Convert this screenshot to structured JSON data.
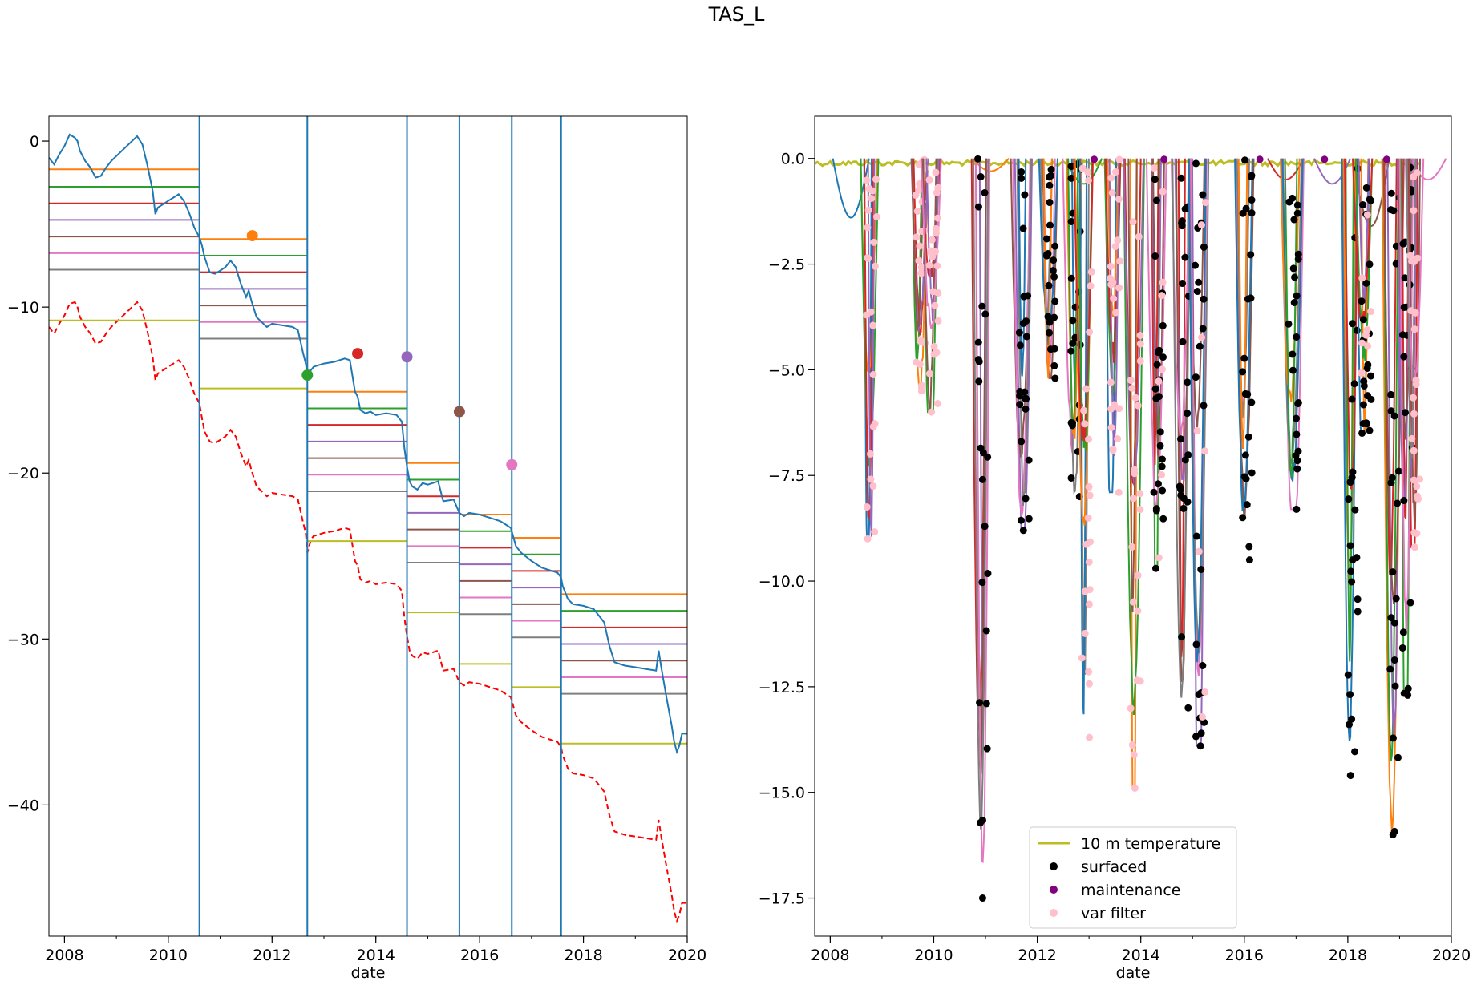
{
  "figure": {
    "suptitle": "TAS_L"
  },
  "chart_data": [
    {
      "type": "line",
      "panel": "left",
      "xlabel": "date",
      "ylabel": "",
      "xlim": [
        2007.7,
        2020.0
      ],
      "ylim": [
        -47.9,
        1.5
      ],
      "x_ticks": [
        2008,
        2010,
        2012,
        2014,
        2016,
        2018,
        2020
      ],
      "x_tick_labels": [
        "2008",
        "2010",
        "2012",
        "2014",
        "2016",
        "2018",
        "2020"
      ],
      "y_ticks": [
        0,
        -10,
        -20,
        -30,
        -40
      ],
      "y_tick_labels": [
        "0",
        "−10",
        "−20",
        "−30",
        "−40"
      ],
      "grid": false,
      "colors": {
        "series": "#1f77b4",
        "dashed": "#ff0000",
        "levels": [
          "#ff7f0e",
          "#2ca02c",
          "#d62728",
          "#9467bd",
          "#8c564b",
          "#e377c2",
          "#7f7f7f",
          "#bcbd22"
        ]
      },
      "vertical_lines": [
        2010.6,
        2012.68,
        2014.6,
        2015.61,
        2016.62,
        2017.57
      ],
      "segments": [
        {
          "x0": 2007.7,
          "x1": 2010.6,
          "levels": [
            -1.7,
            -2.75,
            -3.75,
            -4.75,
            -5.75,
            -6.75,
            -7.75
          ],
          "yellow": -10.8
        },
        {
          "x0": 2010.6,
          "x1": 2012.68,
          "levels": [
            -5.9,
            -6.9,
            -7.9,
            -8.9,
            -9.9,
            -10.9,
            -11.9
          ],
          "yellow": -14.9
        },
        {
          "x0": 2012.68,
          "x1": 2014.6,
          "levels": [
            -15.1,
            -16.1,
            -17.1,
            -18.1,
            -19.1,
            -20.1,
            -21.1
          ],
          "yellow": -24.1
        },
        {
          "x0": 2014.6,
          "x1": 2015.61,
          "levels": [
            -19.4,
            -20.4,
            -21.4,
            -22.4,
            -23.4,
            -24.4,
            -25.4
          ],
          "yellow": -28.4
        },
        {
          "x0": 2015.61,
          "x1": 2016.62,
          "levels": [
            -22.5,
            -23.5,
            -24.5,
            -25.5,
            -26.5,
            -27.5,
            -28.5
          ],
          "yellow": -31.5
        },
        {
          "x0": 2016.62,
          "x1": 2017.57,
          "levels": [
            -23.9,
            -24.9,
            -25.9,
            -26.9,
            -27.9,
            -28.9,
            -29.9
          ],
          "yellow": -32.9
        },
        {
          "x0": 2017.57,
          "x1": 2020.0,
          "levels": [
            -27.3,
            -28.3,
            -29.3,
            -30.3,
            -31.3,
            -32.3,
            -33.3
          ],
          "yellow": -36.3
        }
      ],
      "markers": [
        {
          "x": 2011.62,
          "y": -5.7,
          "color": "#ff7f0e"
        },
        {
          "x": 2012.68,
          "y": -14.1,
          "color": "#2ca02c"
        },
        {
          "x": 2013.65,
          "y": -12.8,
          "color": "#d62728"
        },
        {
          "x": 2014.6,
          "y": -13.0,
          "color": "#9467bd"
        },
        {
          "x": 2015.61,
          "y": -16.3,
          "color": "#8c564b"
        },
        {
          "x": 2016.62,
          "y": -19.5,
          "color": "#e377c2"
        }
      ],
      "series_solid": {
        "x": [
          2007.7,
          2007.8,
          2007.9,
          2008.0,
          2008.1,
          2008.2,
          2008.25,
          2008.3,
          2008.4,
          2008.5,
          2008.6,
          2008.7,
          2008.8,
          2008.9,
          2009.0,
          2009.2,
          2009.4,
          2009.5,
          2009.6,
          2009.7,
          2009.75,
          2009.8,
          2009.9,
          2010.0,
          2010.1,
          2010.2,
          2010.3,
          2010.4,
          2010.5,
          2010.6,
          2010.65,
          2010.7,
          2010.8,
          2010.9,
          2011.0,
          2011.1,
          2011.2,
          2011.3,
          2011.4,
          2011.5,
          2011.55,
          2011.6,
          2011.7,
          2011.8,
          2011.9,
          2012.0,
          2012.2,
          2012.4,
          2012.5,
          2012.6,
          2012.65,
          2012.68,
          2012.75,
          2012.8,
          2012.9,
          2013.0,
          2013.2,
          2013.4,
          2013.5,
          2013.6,
          2013.65,
          2013.7,
          2013.8,
          2013.9,
          2014.0,
          2014.2,
          2014.4,
          2014.5,
          2014.55,
          2014.6,
          2014.65,
          2014.7,
          2014.8,
          2014.9,
          2015.0,
          2015.2,
          2015.3,
          2015.5,
          2015.61,
          2015.7,
          2015.8,
          2016.0,
          2016.2,
          2016.4,
          2016.5,
          2016.6,
          2016.7,
          2016.8,
          2017.0,
          2017.2,
          2017.4,
          2017.5,
          2017.57,
          2017.6,
          2017.7,
          2017.8,
          2018.0,
          2018.2,
          2018.4,
          2018.5,
          2018.6,
          2018.8,
          2019.0,
          2019.2,
          2019.4,
          2019.45,
          2019.5,
          2019.6,
          2019.7,
          2019.75,
          2019.8,
          2019.85,
          2019.9,
          2020.0
        ],
        "y": [
          -1.0,
          -1.4,
          -0.8,
          -0.3,
          0.4,
          0.2,
          0.0,
          -0.6,
          -1.2,
          -1.6,
          -2.2,
          -2.1,
          -1.6,
          -1.2,
          -0.9,
          -0.3,
          0.3,
          -0.2,
          -1.5,
          -3.0,
          -4.4,
          -4.0,
          -3.8,
          -3.6,
          -3.4,
          -3.2,
          -3.6,
          -4.3,
          -5.2,
          -5.8,
          -6.3,
          -7.0,
          -7.9,
          -8.0,
          -7.8,
          -7.6,
          -7.2,
          -7.6,
          -8.6,
          -9.4,
          -9.0,
          -9.6,
          -10.6,
          -10.9,
          -11.2,
          -11.0,
          -11.1,
          -11.2,
          -11.4,
          -12.8,
          -13.4,
          -14.1,
          -13.8,
          -13.6,
          -13.5,
          -13.4,
          -13.3,
          -13.1,
          -13.2,
          -15.1,
          -15.4,
          -16.2,
          -16.4,
          -16.3,
          -16.5,
          -16.4,
          -16.5,
          -16.9,
          -18.5,
          -19.6,
          -20.5,
          -20.8,
          -21.0,
          -20.6,
          -20.7,
          -20.5,
          -21.7,
          -21.6,
          -22.4,
          -22.6,
          -22.4,
          -22.5,
          -22.7,
          -22.9,
          -23.1,
          -23.3,
          -24.4,
          -24.8,
          -25.3,
          -25.7,
          -25.9,
          -26.0,
          -26.3,
          -26.8,
          -27.6,
          -27.9,
          -28.0,
          -28.2,
          -29.0,
          -30.4,
          -31.4,
          -31.6,
          -31.7,
          -31.8,
          -31.9,
          -30.7,
          -31.7,
          -33.5,
          -35.2,
          -36.2,
          -36.8,
          -36.4,
          -35.7,
          -35.7
        ]
      },
      "series_dashed": {
        "x": [
          2007.7,
          2007.8,
          2007.9,
          2008.0,
          2008.1,
          2008.2,
          2008.25,
          2008.3,
          2008.4,
          2008.5,
          2008.6,
          2008.7,
          2008.8,
          2008.9,
          2009.0,
          2009.2,
          2009.4,
          2009.5,
          2009.6,
          2009.7,
          2009.75,
          2009.8,
          2009.9,
          2010.0,
          2010.1,
          2010.2,
          2010.3,
          2010.4,
          2010.5,
          2010.6,
          2010.65,
          2010.7,
          2010.8,
          2010.9,
          2011.0,
          2011.1,
          2011.2,
          2011.3,
          2011.4,
          2011.5,
          2011.55,
          2011.6,
          2011.7,
          2011.8,
          2011.9,
          2012.0,
          2012.2,
          2012.4,
          2012.5,
          2012.6,
          2012.65,
          2012.68,
          2012.75,
          2012.8,
          2012.9,
          2013.0,
          2013.2,
          2013.4,
          2013.5,
          2013.6,
          2013.65,
          2013.7,
          2013.8,
          2013.9,
          2014.0,
          2014.2,
          2014.4,
          2014.5,
          2014.55,
          2014.6,
          2014.65,
          2014.7,
          2014.8,
          2014.9,
          2015.0,
          2015.2,
          2015.3,
          2015.5,
          2015.61,
          2015.7,
          2015.8,
          2016.0,
          2016.2,
          2016.4,
          2016.5,
          2016.6,
          2016.7,
          2016.8,
          2017.0,
          2017.2,
          2017.4,
          2017.5,
          2017.57,
          2017.6,
          2017.7,
          2017.8,
          2018.0,
          2018.2,
          2018.4,
          2018.5,
          2018.6,
          2018.8,
          2019.0,
          2019.2,
          2019.4,
          2019.45,
          2019.5,
          2019.6,
          2019.7,
          2019.75,
          2019.8,
          2019.85,
          2019.9,
          2020.0
        ],
        "y": [
          -11.2,
          -11.6,
          -11.0,
          -10.5,
          -9.8,
          -9.7,
          -10.0,
          -10.6,
          -11.2,
          -11.6,
          -12.2,
          -12.1,
          -11.6,
          -11.2,
          -10.9,
          -10.3,
          -9.7,
          -10.2,
          -11.5,
          -13.0,
          -14.4,
          -14.0,
          -13.8,
          -13.6,
          -13.4,
          -13.2,
          -13.6,
          -14.3,
          -15.2,
          -15.8,
          -16.7,
          -17.5,
          -18.1,
          -18.2,
          -18.0,
          -17.8,
          -17.4,
          -17.8,
          -18.8,
          -19.6,
          -19.2,
          -19.8,
          -20.8,
          -21.1,
          -21.4,
          -21.2,
          -21.3,
          -21.4,
          -21.6,
          -23.0,
          -23.6,
          -24.8,
          -24.0,
          -23.8,
          -23.7,
          -23.6,
          -23.5,
          -23.3,
          -23.4,
          -25.3,
          -25.6,
          -26.4,
          -26.6,
          -26.5,
          -26.7,
          -26.6,
          -26.7,
          -27.1,
          -28.7,
          -29.8,
          -30.7,
          -31.0,
          -31.2,
          -30.8,
          -30.9,
          -30.7,
          -31.9,
          -31.8,
          -32.6,
          -32.8,
          -32.6,
          -32.7,
          -32.9,
          -33.1,
          -33.3,
          -33.5,
          -34.6,
          -35.0,
          -35.5,
          -35.9,
          -36.1,
          -36.2,
          -36.5,
          -37.0,
          -37.8,
          -38.1,
          -38.2,
          -38.4,
          -39.2,
          -40.6,
          -41.6,
          -41.8,
          -41.9,
          -42.0,
          -42.1,
          -40.9,
          -41.9,
          -43.7,
          -45.4,
          -46.4,
          -47.0,
          -46.6,
          -45.9,
          -45.9
        ]
      }
    },
    {
      "type": "line",
      "panel": "right",
      "xlabel": "date",
      "ylabel": "",
      "xlim": [
        2007.7,
        2020.0
      ],
      "ylim": [
        -18.4,
        1.0
      ],
      "x_ticks": [
        2008,
        2010,
        2012,
        2014,
        2016,
        2018,
        2020
      ],
      "x_tick_labels": [
        "2008",
        "2010",
        "2012",
        "2014",
        "2016",
        "2018",
        "2020"
      ],
      "y_ticks": [
        0.0,
        -2.5,
        -5.0,
        -7.5,
        -10.0,
        -12.5,
        -15.0,
        -17.5
      ],
      "y_tick_labels": [
        "0.0",
        "−2.5",
        "−5.0",
        "−7.5",
        "−10.0",
        "−12.5",
        "−15.0",
        "−17.5"
      ],
      "grid": false,
      "colors": {
        "lines": [
          "#1f77b4",
          "#ff7f0e",
          "#2ca02c",
          "#d62728",
          "#9467bd",
          "#8c564b",
          "#e377c2",
          "#7f7f7f"
        ],
        "temperature": "#bcbd22",
        "surfaced": "#000000",
        "maintenance": "#800080",
        "var_filter": "#ffc0cb"
      },
      "legend": {
        "position": "lower-center",
        "entries": [
          {
            "label": "10 m temperature",
            "marker": "line",
            "color": "#bcbd22"
          },
          {
            "label": "surfaced",
            "marker": "dot",
            "color": "#000000"
          },
          {
            "label": "maintenance",
            "marker": "dot",
            "color": "#800080"
          },
          {
            "label": "var filter",
            "marker": "dot",
            "color": "#ffc0cb"
          }
        ]
      },
      "events": [
        {
          "x": 2008.8,
          "min": -9.0,
          "pink": true,
          "black": false
        },
        {
          "x": 2009.75,
          "min": -5.5,
          "pink": true,
          "black": false
        },
        {
          "x": 2010.0,
          "min": -6.0,
          "pink": true,
          "black": false
        },
        {
          "x": 2010.95,
          "min": -17.5,
          "pink": false,
          "black": true
        },
        {
          "x": 2011.75,
          "min": -8.8,
          "pink": false,
          "black": true
        },
        {
          "x": 2012.25,
          "min": -5.2,
          "pink": false,
          "black": true
        },
        {
          "x": 2012.75,
          "min": -8.0,
          "pink": false,
          "black": true
        },
        {
          "x": 2012.95,
          "min": -13.7,
          "pink": true,
          "black": false
        },
        {
          "x": 2013.5,
          "min": -7.9,
          "pink": true,
          "black": false
        },
        {
          "x": 2013.9,
          "min": -14.9,
          "pink": true,
          "black": false
        },
        {
          "x": 2014.35,
          "min": -9.7,
          "pink": true,
          "black": true
        },
        {
          "x": 2014.85,
          "min": -13.0,
          "pink": false,
          "black": true
        },
        {
          "x": 2015.15,
          "min": -13.9,
          "pink": true,
          "black": true
        },
        {
          "x": 2016.05,
          "min": -9.5,
          "pink": false,
          "black": true
        },
        {
          "x": 2016.95,
          "min": -8.3,
          "pink": false,
          "black": true
        },
        {
          "x": 2018.1,
          "min": -14.6,
          "pink": false,
          "black": true
        },
        {
          "x": 2018.35,
          "min": -6.5,
          "pink": true,
          "black": true
        },
        {
          "x": 2018.9,
          "min": -16.0,
          "pink": false,
          "black": true
        },
        {
          "x": 2019.15,
          "min": -12.7,
          "pink": false,
          "black": true
        },
        {
          "x": 2019.3,
          "min": -9.2,
          "pink": true,
          "black": false
        }
      ],
      "shallow": [
        {
          "x": 2008.4,
          "min": -1.4
        },
        {
          "x": 2011.1,
          "min": -0.3
        },
        {
          "x": 2012.9,
          "min": -0.6
        },
        {
          "x": 2016.8,
          "min": -0.5
        },
        {
          "x": 2017.7,
          "min": -0.6
        },
        {
          "x": 2018.45,
          "min": -1.6
        },
        {
          "x": 2019.55,
          "min": -0.5
        }
      ]
    }
  ]
}
